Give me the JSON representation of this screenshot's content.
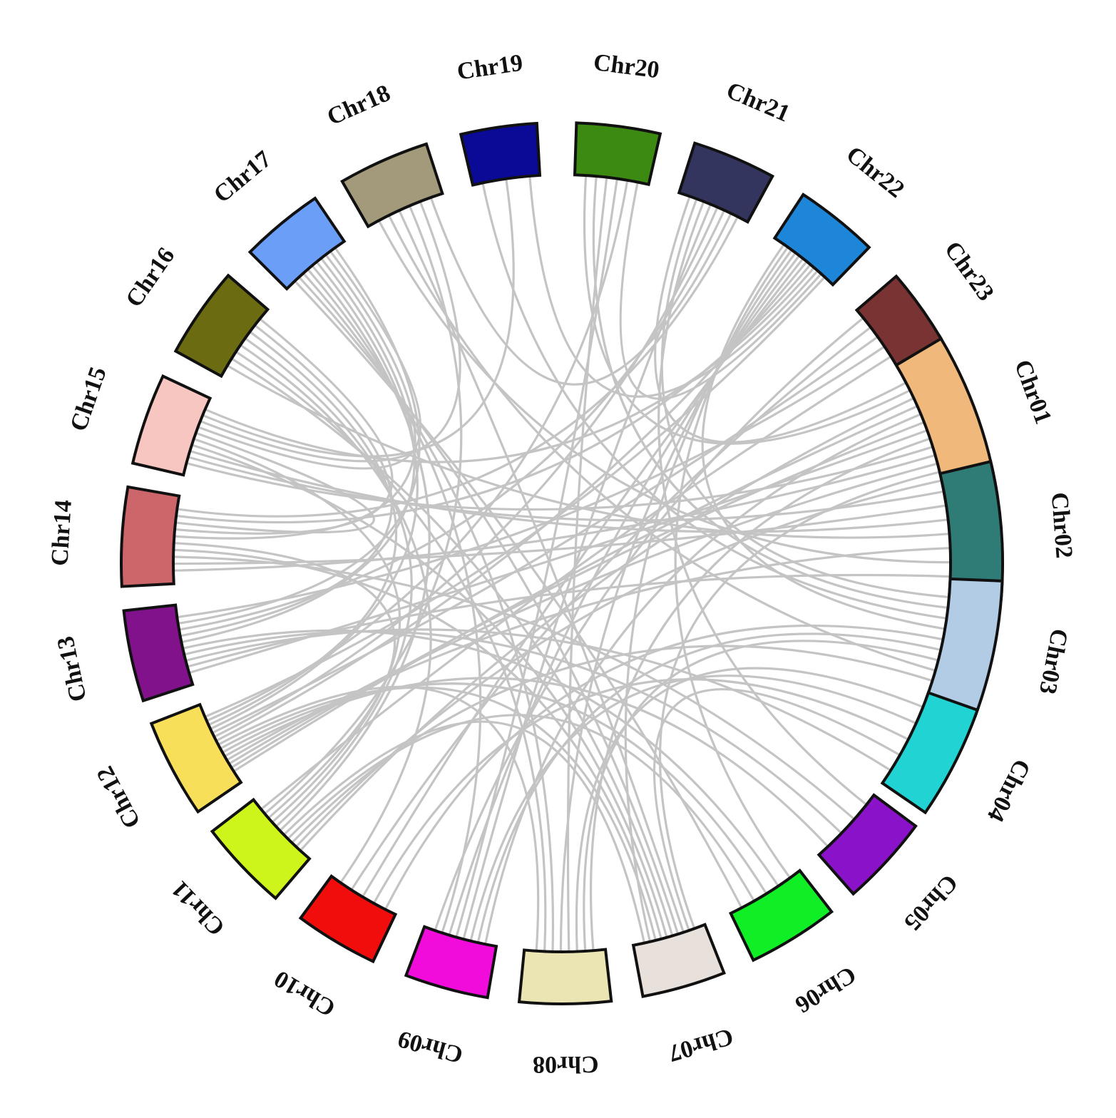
{
  "diagram": {
    "type": "circos",
    "link_color": "#c4c4c4",
    "chromosomes": [
      {
        "id": "chr01",
        "label": "Chr01",
        "color": "#f0b87a"
      },
      {
        "id": "chr02",
        "label": "Chr02",
        "color": "#2f7b76"
      },
      {
        "id": "chr03",
        "label": "Chr03",
        "color": "#b3cce6"
      },
      {
        "id": "chr04",
        "label": "Chr04",
        "color": "#22d3d3"
      },
      {
        "id": "chr05",
        "label": "Chr05",
        "color": "#8a12c8"
      },
      {
        "id": "chr06",
        "label": "Chr06",
        "color": "#10ee26"
      },
      {
        "id": "chr07",
        "label": "Chr07",
        "color": "#e8e0da"
      },
      {
        "id": "chr08",
        "label": "Chr08",
        "color": "#ebe5b3"
      },
      {
        "id": "chr09",
        "label": "Chr09",
        "color": "#f20cdb"
      },
      {
        "id": "chr10",
        "label": "Chr10",
        "color": "#f20d0d"
      },
      {
        "id": "chr11",
        "label": "Chr11",
        "color": "#cdf51b"
      },
      {
        "id": "chr12",
        "label": "Chr12",
        "color": "#f7df5a"
      },
      {
        "id": "chr13",
        "label": "Chr13",
        "color": "#82128c"
      },
      {
        "id": "chr14",
        "label": "Chr14",
        "color": "#cc666b"
      },
      {
        "id": "chr15",
        "label": "Chr15",
        "color": "#f8c6c0"
      },
      {
        "id": "chr16",
        "label": "Chr16",
        "color": "#6b6b12"
      },
      {
        "id": "chr17",
        "label": "Chr17",
        "color": "#6b9ef7"
      },
      {
        "id": "chr18",
        "label": "Chr18",
        "color": "#a39a7c"
      },
      {
        "id": "chr19",
        "label": "Chr19",
        "color": "#0a0a96"
      },
      {
        "id": "chr20",
        "label": "Chr20",
        "color": "#3d8a12"
      },
      {
        "id": "chr21",
        "label": "Chr21",
        "color": "#34355e"
      },
      {
        "id": "chr22",
        "label": "Chr22",
        "color": "#1d86d9"
      },
      {
        "id": "chr23",
        "label": "Chr23",
        "color": "#7a3333"
      }
    ],
    "links": [
      [
        "chr01",
        "chr21"
      ],
      [
        "chr01",
        "chr20"
      ],
      [
        "chr01",
        "chr11"
      ],
      [
        "chr01",
        "chr12"
      ],
      [
        "chr01",
        "chr09"
      ],
      [
        "chr01",
        "chr12"
      ],
      [
        "chr01",
        "chr13"
      ],
      [
        "chr01",
        "chr08"
      ],
      [
        "chr01",
        "chr15"
      ],
      [
        "chr01",
        "chr14"
      ],
      [
        "chr01",
        "chr12"
      ],
      [
        "chr01",
        "chr07"
      ],
      [
        "chr01",
        "chr11"
      ],
      [
        "chr02",
        "chr15"
      ],
      [
        "chr02",
        "chr14"
      ],
      [
        "chr02",
        "chr15"
      ],
      [
        "chr02",
        "chr16"
      ],
      [
        "chr02",
        "chr12"
      ],
      [
        "chr02",
        "chr18"
      ],
      [
        "chr02",
        "chr13"
      ],
      [
        "chr03",
        "chr21"
      ],
      [
        "chr03",
        "chr20"
      ],
      [
        "chr03",
        "chr19"
      ],
      [
        "chr03",
        "chr22"
      ],
      [
        "chr03",
        "chr10"
      ],
      [
        "chr03",
        "chr09"
      ],
      [
        "chr03",
        "chr08"
      ],
      [
        "chr03",
        "chr18"
      ],
      [
        "chr03",
        "chr11"
      ],
      [
        "chr04",
        "chr08"
      ],
      [
        "chr04",
        "chr09"
      ],
      [
        "chr04",
        "chr10"
      ],
      [
        "chr04",
        "chr07"
      ],
      [
        "chr04",
        "chr13"
      ],
      [
        "chr05",
        "chr21"
      ],
      [
        "chr05",
        "chr14"
      ],
      [
        "chr05",
        "chr13"
      ],
      [
        "chr05",
        "chr12"
      ],
      [
        "chr06",
        "chr22"
      ],
      [
        "chr06",
        "chr13"
      ],
      [
        "chr06",
        "chr12"
      ],
      [
        "chr06",
        "chr11"
      ],
      [
        "chr06",
        "chr17"
      ],
      [
        "chr07",
        "chr18"
      ],
      [
        "chr07",
        "chr17"
      ],
      [
        "chr07",
        "chr16"
      ],
      [
        "chr07",
        "chr15"
      ],
      [
        "chr07",
        "chr14"
      ],
      [
        "chr07",
        "chr12"
      ],
      [
        "chr07",
        "chr22"
      ],
      [
        "chr07",
        "chr11"
      ],
      [
        "chr08",
        "chr20"
      ],
      [
        "chr08",
        "chr22"
      ],
      [
        "chr08",
        "chr17"
      ],
      [
        "chr08",
        "chr16"
      ],
      [
        "chr08",
        "chr12"
      ],
      [
        "chr09",
        "chr21"
      ],
      [
        "chr09",
        "chr20"
      ],
      [
        "chr09",
        "chr22"
      ],
      [
        "chr09",
        "chr17"
      ],
      [
        "chr09",
        "chr23"
      ],
      [
        "chr10",
        "chr22"
      ],
      [
        "chr10",
        "chr23"
      ],
      [
        "chr10",
        "chr16"
      ],
      [
        "chr11",
        "chr17"
      ],
      [
        "chr11",
        "chr16"
      ],
      [
        "chr11",
        "chr15"
      ],
      [
        "chr11",
        "chr14"
      ],
      [
        "chr11",
        "chr18"
      ],
      [
        "chr12",
        "chr22"
      ],
      [
        "chr12",
        "chr21"
      ],
      [
        "chr12",
        "chr23"
      ],
      [
        "chr12",
        "chr17"
      ],
      [
        "chr12",
        "chr16"
      ],
      [
        "chr12",
        "chr20"
      ],
      [
        "chr13",
        "chr17"
      ],
      [
        "chr13",
        "chr16"
      ],
      [
        "chr13",
        "chr21"
      ],
      [
        "chr14",
        "chr17"
      ],
      [
        "chr14",
        "chr16"
      ],
      [
        "chr14",
        "chr15"
      ],
      [
        "chr14",
        "chr22"
      ],
      [
        "chr15",
        "chr17"
      ],
      [
        "chr15",
        "chr18"
      ],
      [
        "chr15",
        "chr19"
      ],
      [
        "chr15",
        "chr22"
      ],
      [
        "chr17",
        "chr13"
      ],
      [
        "chr18",
        "chr21"
      ],
      [
        "chr19",
        "chr22"
      ],
      [
        "chr20",
        "chr22"
      ],
      [
        "chr21",
        "chr14"
      ],
      [
        "chr22",
        "chr12"
      ],
      [
        "chr23",
        "chr13"
      ],
      [
        "chr23",
        "chr11"
      ]
    ]
  }
}
